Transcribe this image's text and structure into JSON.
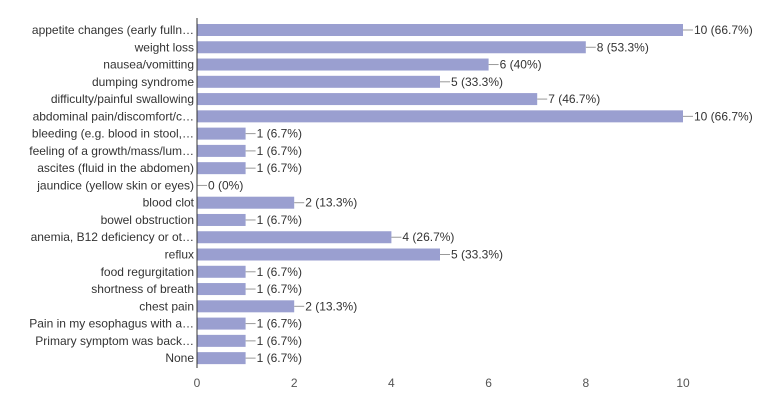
{
  "chart_data": {
    "type": "bar",
    "orientation": "horizontal",
    "categories": [
      "appetite changes (early fulln…",
      "weight loss",
      "nausea/vomitting",
      "dumping syndrome",
      "difficulty/painful swallowing",
      "abdominal pain/discomfort/c…",
      "bleeding (e.g. blood in stool,…",
      "feeling of a growth/mass/lum…",
      "ascites (fluid in the abdomen)",
      "jaundice (yellow skin or eyes)",
      "blood clot",
      "bowel obstruction",
      "anemia, B12 deficiency or ot…",
      "reflux",
      "food regurgitation",
      "shortness of breath",
      "chest pain",
      "Pain in my esophagus with a…",
      "Primary symptom was back…",
      "None"
    ],
    "values": [
      10,
      8,
      6,
      5,
      7,
      10,
      1,
      1,
      1,
      0,
      2,
      1,
      4,
      5,
      1,
      1,
      2,
      1,
      1,
      1
    ],
    "data_labels": [
      "10 (66.7%)",
      "8 (53.3%)",
      "6 (40%)",
      "5 (33.3%)",
      "7 (46.7%)",
      "10 (66.7%)",
      "1 (6.7%)",
      "1 (6.7%)",
      "1 (6.7%)",
      "0 (0%)",
      "2 (13.3%)",
      "1 (6.7%)",
      "4 (26.7%)",
      "5 (33.3%)",
      "1 (6.7%)",
      "1 (6.7%)",
      "2 (13.3%)",
      "1 (6.7%)",
      "1 (6.7%)",
      "1 (6.7%)"
    ],
    "xlim": [
      0,
      10
    ],
    "xticks": [
      "0",
      "2",
      "4",
      "6",
      "8",
      "10"
    ],
    "grid": false,
    "bar_color": "#9a9fd0"
  }
}
